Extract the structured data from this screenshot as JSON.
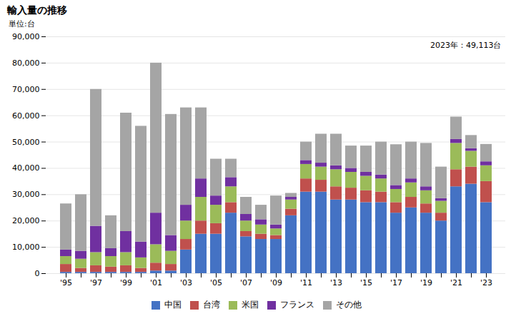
{
  "chart_data": {
    "type": "bar",
    "stacked": true,
    "title": "輸入量の推移",
    "ylabel": "単位:台",
    "annotation": "2023年：49,113台",
    "categories": [
      "'95",
      null,
      "'97",
      null,
      "'99",
      null,
      "'01",
      null,
      "'03",
      null,
      "'05",
      null,
      "'07",
      null,
      "'09",
      null,
      "'11",
      null,
      "'13",
      null,
      "'15",
      null,
      "'17",
      null,
      "'19",
      null,
      "'21",
      null,
      "'23"
    ],
    "series": [
      {
        "name": "中国",
        "color": "#4472c4",
        "values": [
          500,
          500,
          500,
          500,
          500,
          500,
          1000,
          1000,
          9000,
          15000,
          15000,
          23000,
          14000,
          13000,
          13000,
          22000,
          31000,
          31000,
          28000,
          28000,
          27000,
          27000,
          23000,
          25000,
          23000,
          20000,
          33000,
          34000,
          27000
        ]
      },
      {
        "name": "台湾",
        "color": "#c0504d",
        "values": [
          3000,
          1500,
          2500,
          2000,
          2500,
          1500,
          3000,
          2500,
          4000,
          5000,
          4000,
          4000,
          2000,
          2000,
          1500,
          2500,
          5000,
          4500,
          5000,
          4500,
          4500,
          4000,
          4000,
          4000,
          3500,
          3000,
          6500,
          6500,
          8000
        ]
      },
      {
        "name": "米国",
        "color": "#9bbb59",
        "values": [
          3000,
          3500,
          5000,
          4000,
          5000,
          4000,
          7000,
          5000,
          7000,
          9000,
          7000,
          6000,
          4000,
          3500,
          2500,
          3500,
          5500,
          5000,
          6500,
          6000,
          5500,
          5000,
          5000,
          5500,
          5000,
          4500,
          10000,
          6000,
          6000
        ]
      },
      {
        "name": "フランス",
        "color": "#7030a0",
        "values": [
          2500,
          3000,
          10000,
          3000,
          8000,
          6000,
          12000,
          6000,
          6000,
          7000,
          3500,
          3500,
          2500,
          2000,
          1500,
          1000,
          1500,
          1500,
          1500,
          1500,
          1500,
          1500,
          1500,
          1500,
          1500,
          1000,
          1500,
          1000,
          1500
        ]
      },
      {
        "name": "その他",
        "color": "#a5a5a5",
        "values": [
          17500,
          21500,
          52000,
          12500,
          45000,
          44000,
          57000,
          46000,
          37000,
          27000,
          14000,
          7000,
          6500,
          5500,
          11000,
          1500,
          7000,
          11000,
          12000,
          8500,
          10000,
          12500,
          15500,
          14000,
          16500,
          12000,
          8500,
          5000,
          6613
        ]
      }
    ],
    "ylim": [
      0,
      90000
    ],
    "yticks": [
      0,
      {
        "value": 10000,
        "label": "10,000"
      },
      {
        "value": 20000,
        "label": "20,000"
      },
      {
        "value": 30000,
        "label": "30,000"
      },
      {
        "value": 40000,
        "label": "40,000"
      },
      {
        "value": 50000,
        "label": "50,000"
      },
      {
        "value": 60000,
        "label": "60,000"
      },
      {
        "value": 70000,
        "label": "70,000"
      },
      {
        "value": 80000,
        "label": "80,000"
      },
      {
        "value": 90000,
        "label": "90,000"
      }
    ],
    "grid": true,
    "legend": "bottom"
  }
}
